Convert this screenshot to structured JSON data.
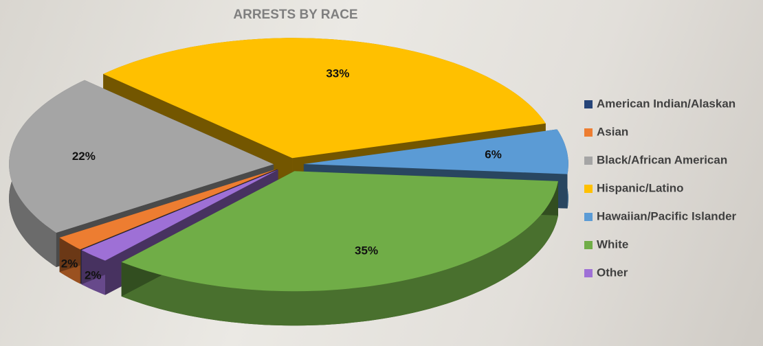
{
  "chart_data": {
    "type": "pie3d",
    "title": "ARRESTS BY RACE",
    "categories": [
      "American Indian/Alaskan",
      "Asian",
      "Black/African American",
      "Hispanic/Latino",
      "Hawaiian/Pacific Islander",
      "White",
      "Other"
    ],
    "values": [
      0,
      2,
      22,
      33,
      6,
      35,
      2
    ],
    "value_labels": [
      null,
      "2%",
      "22%",
      "33%",
      "6%",
      "35%",
      "2%"
    ],
    "colors": [
      "#264478",
      "#ed7d31",
      "#a5a5a5",
      "#ffc000",
      "#5b9bd5",
      "#70ad47",
      "#9e70d6"
    ],
    "legend": "right"
  }
}
